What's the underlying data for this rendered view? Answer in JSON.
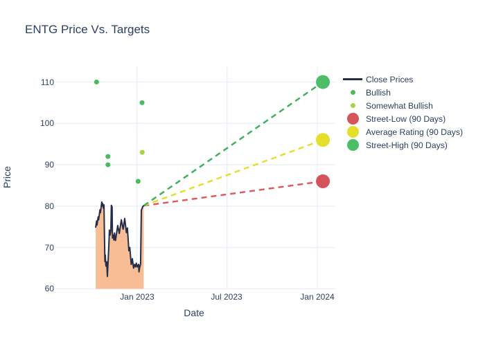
{
  "title": "ENTG Price Vs. Targets",
  "colors": {
    "text": "#2a3f5f",
    "grid": "#e9eef8",
    "close_line": "#252e48",
    "close_fill": "#f9bd96",
    "bullish": "#4bba5d",
    "somewhat_bullish": "#a9d33e",
    "street_low": "#d4545a",
    "average_rating": "#e4df2b",
    "street_high": "#4dbe68",
    "proj_low": "#df5b5b",
    "proj_avg": "#e3de2f",
    "proj_high": "#3fb05c"
  },
  "axes": {
    "x": {
      "title": "Date",
      "range": [
        2022.549,
        2024.1
      ],
      "ticks": [
        {
          "label": "Jan 2023",
          "value": 2023.0
        },
        {
          "label": "Jul 2023",
          "value": 2023.5
        },
        {
          "label": "Jan 2024",
          "value": 2024.0
        }
      ]
    },
    "y": {
      "title": "Price",
      "range": [
        59.9,
        113.6
      ],
      "ticks": [
        {
          "label": "60",
          "value": 60
        },
        {
          "label": "70",
          "value": 70
        },
        {
          "label": "80",
          "value": 80
        },
        {
          "label": "90",
          "value": 90
        },
        {
          "label": "100",
          "value": 100
        },
        {
          "label": "110",
          "value": 110
        }
      ]
    }
  },
  "legend": {
    "items": [
      {
        "label": "Close Prices",
        "swatch": "line",
        "color": "close_line"
      },
      {
        "label": "Bullish",
        "swatch": "dot-small",
        "color": "bullish"
      },
      {
        "label": "Somewhat Bullish",
        "swatch": "dot-small",
        "color": "somewhat_bullish"
      },
      {
        "label": "Street-Low (90 Days)",
        "swatch": "dot-large",
        "color": "street_low"
      },
      {
        "label": "Average Rating (90 Days)",
        "swatch": "dot-large",
        "color": "average_rating"
      },
      {
        "label": "Street-High (90 Days)",
        "swatch": "dot-large",
        "color": "street_high"
      }
    ]
  },
  "chart_data": {
    "type": "line",
    "title": "ENTG Price Vs. Targets",
    "xlabel": "Date",
    "ylabel": "Price",
    "xlim": [
      2022.549,
      2024.1
    ],
    "ylim": [
      59.9,
      113.6
    ],
    "grid": true,
    "legend_position": "right",
    "close_prices": {
      "name": "Close Prices",
      "x": [
        2022.772,
        2022.777,
        2022.779,
        2022.786,
        2022.788,
        2022.796,
        2022.798,
        2022.806,
        2022.809,
        2022.811,
        2022.815,
        2022.818,
        2022.82,
        2022.823,
        2022.825,
        2022.829,
        2022.833,
        2022.837,
        2022.841,
        2022.845,
        2022.848,
        2022.852,
        2022.856,
        2022.859,
        2022.863,
        2022.865,
        2022.869,
        2022.873,
        2022.876,
        2022.882,
        2022.894,
        2022.903,
        2022.914,
        2022.924,
        2022.933,
        2022.942,
        2022.948,
        2022.956,
        2022.961,
        2022.969,
        2022.975,
        2022.982,
        2022.988,
        2022.993,
        2022.997,
        2023.003,
        2023.01,
        2023.012,
        2023.016,
        2023.021,
        2023.025,
        2023.033,
        2023.038
      ],
      "y": [
        74.9,
        76.4,
        75.4,
        77.4,
        76.7,
        79.1,
        78.4,
        81.0,
        80.0,
        80.6,
        79.5,
        80.3,
        74.5,
        66.6,
        68.2,
        65.5,
        66.5,
        63.0,
        67.0,
        70.5,
        74.2,
        73.0,
        74.0,
        80.2,
        79.8,
        72.3,
        73.0,
        71.8,
        73.5,
        71.7,
        75.3,
        73.4,
        76.7,
        74.4,
        77.0,
        73.6,
        74.7,
        69.2,
        70.0,
        65.9,
        67.3,
        65.0,
        65.9,
        65.3,
        66.2,
        65.3,
        65.9,
        64.1,
        65.2,
        66.0,
        79.0,
        79.9,
        80.1
      ],
      "fill_to": 60
    },
    "bullish_points": {
      "name": "Bullish",
      "points": [
        {
          "x": 2022.777,
          "y": 110
        },
        {
          "x": 2022.84,
          "y": 92
        },
        {
          "x": 2022.84,
          "y": 90
        },
        {
          "x": 2023.007,
          "y": 86
        },
        {
          "x": 2023.029,
          "y": 105
        }
      ]
    },
    "somewhat_bullish_points": {
      "name": "Somewhat Bullish",
      "points": [
        {
          "x": 2023.03,
          "y": 93
        }
      ]
    },
    "projection_start": {
      "x": 2023.038,
      "y": 80.1
    },
    "targets": [
      {
        "name": "Street-Low (90 Days)",
        "x": 2024.031,
        "y": 86,
        "color": "street_low",
        "line_color": "proj_low"
      },
      {
        "name": "Average Rating (90 Days)",
        "x": 2024.031,
        "y": 96,
        "color": "average_rating",
        "line_color": "proj_avg"
      },
      {
        "name": "Street-High (90 Days)",
        "x": 2024.031,
        "y": 110,
        "color": "street_high",
        "line_color": "proj_high"
      }
    ]
  }
}
